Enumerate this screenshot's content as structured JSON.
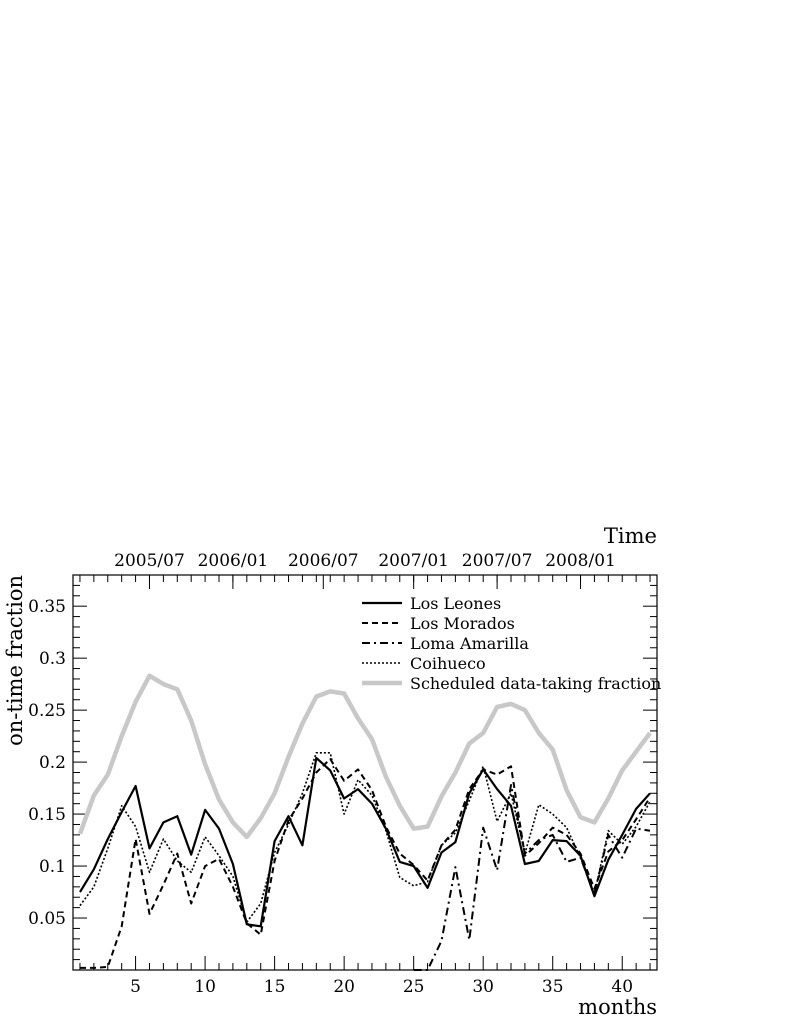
{
  "chart_data": {
    "type": "line",
    "ylabel": "on-time fraction",
    "xlabel": "months",
    "top_axis_title": "Time",
    "xlim": [
      0.5,
      42.5
    ],
    "ylim": [
      0,
      0.38
    ],
    "x_ticks": [
      "5",
      "10",
      "15",
      "20",
      "25",
      "30",
      "35",
      "40"
    ],
    "y_ticks": [
      "0.05",
      "0.1",
      "0.15",
      "0.2",
      "0.25",
      "0.3",
      "0.35"
    ],
    "top_ticks": [
      {
        "label": "2005/07",
        "month": 6
      },
      {
        "label": "2006/01",
        "month": 12
      },
      {
        "label": "2006/07",
        "month": 18.5
      },
      {
        "label": "2007/01",
        "month": 25
      },
      {
        "label": "2007/07",
        "month": 31
      },
      {
        "label": "2008/01",
        "month": 37
      }
    ],
    "legend_position": "top-right",
    "x": [
      1,
      2,
      3,
      4,
      5,
      6,
      7,
      8,
      9,
      10,
      11,
      12,
      13,
      14,
      15,
      16,
      17,
      18,
      19,
      20,
      21,
      22,
      23,
      24,
      25,
      26,
      27,
      28,
      29,
      30,
      31,
      32,
      33,
      34,
      35,
      36,
      37,
      38,
      39,
      40,
      41,
      42
    ],
    "series": [
      {
        "name": "Los Leones",
        "style": "solid",
        "values": [
          0.075,
          0.097,
          0.126,
          0.152,
          0.177,
          0.117,
          0.142,
          0.148,
          0.111,
          0.154,
          0.136,
          0.102,
          0.044,
          0.042,
          0.124,
          0.148,
          0.12,
          0.204,
          0.192,
          0.165,
          0.174,
          0.16,
          0.136,
          0.104,
          0.1,
          0.079,
          0.113,
          0.123,
          0.17,
          0.193,
          0.174,
          0.158,
          0.102,
          0.105,
          0.125,
          0.124,
          0.11,
          0.071,
          0.106,
          0.13,
          0.155,
          0.17
        ]
      },
      {
        "name": "Los Morados",
        "style": "dashed",
        "values": [
          0.002,
          0.002,
          0.003,
          0.042,
          0.126,
          0.054,
          0.082,
          0.112,
          0.064,
          0.1,
          0.107,
          0.08,
          0.045,
          0.034,
          0.105,
          0.144,
          0.165,
          0.19,
          0.203,
          0.182,
          0.193,
          0.173,
          0.138,
          0.112,
          0.101,
          0.086,
          0.12,
          0.135,
          0.174,
          0.193,
          0.188,
          0.196,
          0.11,
          0.122,
          0.137,
          0.13,
          0.112,
          0.078,
          0.114,
          0.125,
          0.145,
          0.166
        ]
      },
      {
        "name": "Loma Amarilla",
        "style": "dashdot",
        "values": [
          null,
          null,
          null,
          null,
          null,
          null,
          null,
          null,
          null,
          null,
          null,
          null,
          null,
          null,
          null,
          null,
          null,
          null,
          null,
          null,
          null,
          null,
          null,
          null,
          0.0,
          0.0,
          0.028,
          0.099,
          0.029,
          0.137,
          0.096,
          0.178,
          0.112,
          0.125,
          0.13,
          0.104,
          0.108,
          0.073,
          0.13,
          0.108,
          0.136,
          0.134
        ]
      },
      {
        "name": "Coihueco",
        "style": "dotted",
        "values": [
          0.062,
          0.08,
          0.117,
          0.158,
          0.138,
          0.094,
          0.126,
          0.105,
          0.094,
          0.128,
          0.11,
          0.09,
          0.046,
          0.064,
          0.113,
          0.14,
          0.17,
          0.209,
          0.209,
          0.15,
          0.183,
          0.168,
          0.134,
          0.089,
          0.081,
          0.085,
          0.12,
          0.132,
          0.163,
          0.196,
          0.143,
          0.17,
          0.112,
          0.159,
          0.15,
          0.137,
          0.108,
          0.073,
          0.134,
          0.121,
          0.138,
          0.162
        ]
      },
      {
        "name": "Scheduled data-taking fraction",
        "style": "thick-grey",
        "values": [
          0.131,
          0.168,
          0.188,
          0.225,
          0.258,
          0.283,
          0.275,
          0.27,
          0.24,
          0.198,
          0.164,
          0.142,
          0.128,
          0.146,
          0.17,
          0.205,
          0.237,
          0.263,
          0.268,
          0.266,
          0.242,
          0.222,
          0.186,
          0.158,
          0.136,
          0.138,
          0.167,
          0.19,
          0.218,
          0.228,
          0.253,
          0.256,
          0.25,
          0.228,
          0.212,
          0.173,
          0.147,
          0.142,
          0.165,
          0.192,
          0.21,
          0.228
        ]
      }
    ]
  }
}
